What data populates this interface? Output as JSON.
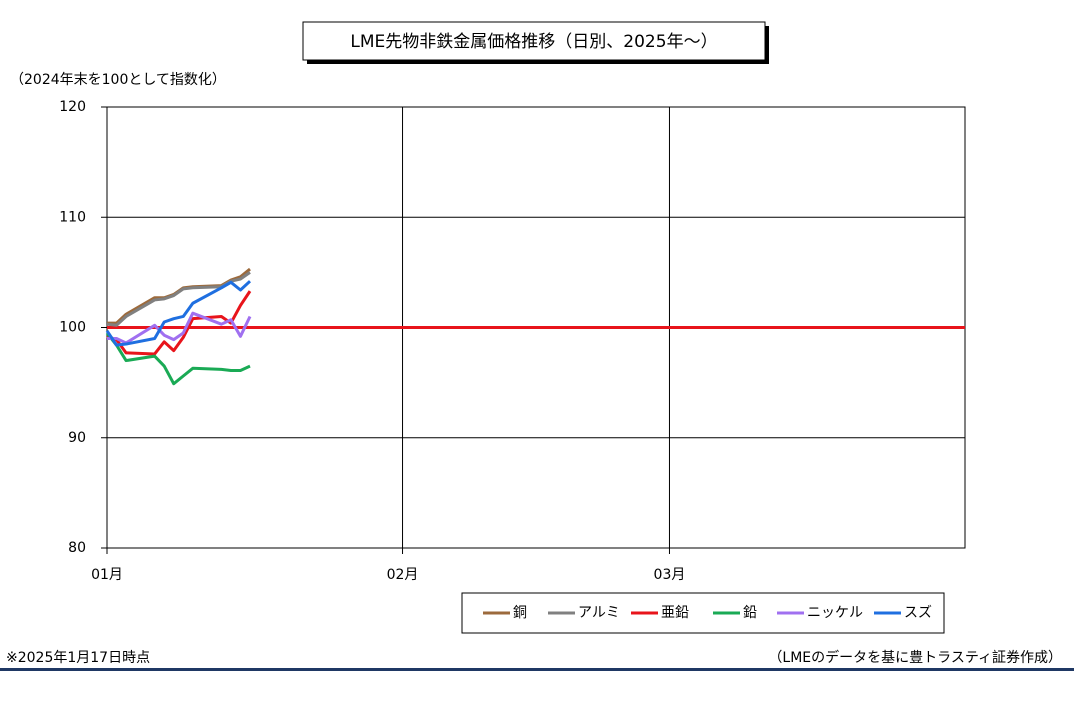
{
  "chart_data": {
    "type": "line",
    "title": "LME先物非鉄金属価格推移（日別、2025年～）",
    "y_label": "（2024年末を100として指数化）",
    "note": "※2025年1月17日時点",
    "source": "（LMEのデータを基に豊トラスティ証券作成）",
    "x": [
      1,
      2,
      3,
      6,
      7,
      8,
      9,
      10,
      13,
      14,
      15,
      16
    ],
    "xlim": [
      1,
      91
    ],
    "xticks": [
      {
        "value": 1,
        "label": "01月"
      },
      {
        "value": 32,
        "label": "02月"
      },
      {
        "value": 60,
        "label": "03月"
      }
    ],
    "ylim": [
      80,
      120
    ],
    "yticks": [
      80,
      90,
      100,
      110,
      120
    ],
    "grid": true,
    "reference_line": {
      "value": 100,
      "color": "#e8141b"
    },
    "series": [
      {
        "name": "銅",
        "color": "#9c6a3c",
        "values": [
          100.4,
          100.4,
          101.2,
          102.7,
          102.7,
          103.0,
          103.6,
          103.7,
          103.8,
          104.3,
          104.6,
          105.3
        ]
      },
      {
        "name": "アルミ",
        "color": "#808080",
        "values": [
          100.3,
          100.2,
          101.0,
          102.5,
          102.6,
          102.9,
          103.5,
          103.6,
          103.7,
          104.2,
          104.4,
          105.0
        ]
      },
      {
        "name": "亜鉛",
        "color": "#e8141b",
        "values": [
          99.2,
          98.9,
          97.7,
          97.6,
          98.7,
          97.9,
          99.1,
          100.8,
          101.0,
          100.4,
          102.0,
          103.3
        ]
      },
      {
        "name": "鉛",
        "color": "#1aaa55",
        "values": [
          99.5,
          98.4,
          97.0,
          97.4,
          96.5,
          94.9,
          95.6,
          96.3,
          96.2,
          96.1,
          96.1,
          96.5
        ]
      },
      {
        "name": "ニッケル",
        "color": "#a070f0",
        "values": [
          99.0,
          99.0,
          98.6,
          100.2,
          99.3,
          98.9,
          99.5,
          101.3,
          100.3,
          100.7,
          99.2,
          101.0
        ]
      },
      {
        "name": "スズ",
        "color": "#1f6fe0",
        "values": [
          99.7,
          98.4,
          98.5,
          99.0,
          100.5,
          100.8,
          101.0,
          102.2,
          103.6,
          104.1,
          103.4,
          104.2
        ]
      }
    ]
  }
}
